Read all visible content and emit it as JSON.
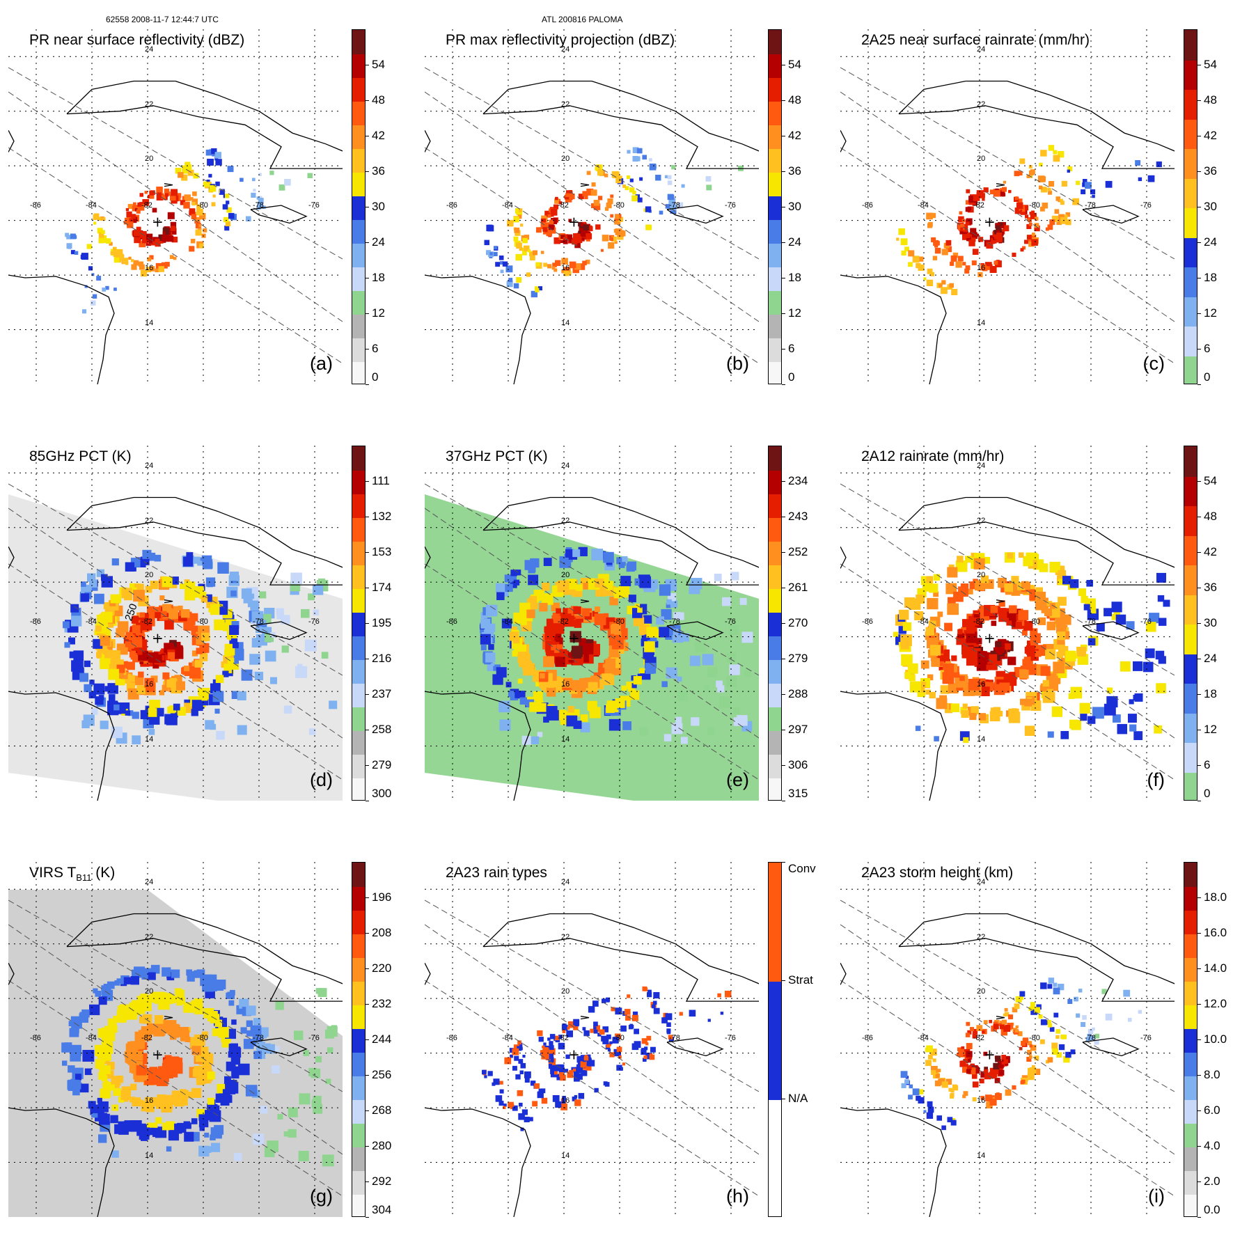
{
  "header": {
    "orbit_time": "62558 2008-11-7 12:44:7 UTC",
    "storm": "ATL 200816 PALOMA"
  },
  "colors": {
    "land_outline": "#000000",
    "grid": "#000000",
    "swath_edge": "#555555"
  },
  "map_ticks": {
    "lat": [
      "24",
      "22",
      "20",
      "16",
      "14"
    ],
    "lon": [
      "-86",
      "-84",
      "-82",
      "-80",
      "-78",
      "-76"
    ]
  },
  "panels": [
    {
      "id": "a",
      "title": "PR near surface reflectivity (dBZ)",
      "label": "(a)",
      "colorbar": {
        "ticks": [
          "54",
          "48",
          "42",
          "36",
          "30",
          "24",
          "18",
          "12",
          "6",
          "0"
        ],
        "colors": [
          "#f7f7f7",
          "#dcdcdc",
          "#b4b4b4",
          "#8fd48f",
          "#c8d8f8",
          "#7fb0f0",
          "#4a7ce8",
          "#1a2fd6",
          "#f6e600",
          "#ffc020",
          "#ff9020",
          "#ff5a10",
          "#e61e00",
          "#b40000",
          "#6e1414"
        ]
      }
    },
    {
      "id": "b",
      "title": "PR max reflectivity projection (dBZ)",
      "label": "(b)",
      "colorbar": {
        "ticks": [
          "54",
          "48",
          "42",
          "36",
          "30",
          "24",
          "18",
          "12",
          "6",
          "0"
        ],
        "colors": [
          "#f7f7f7",
          "#dcdcdc",
          "#b4b4b4",
          "#8fd48f",
          "#c8d8f8",
          "#7fb0f0",
          "#4a7ce8",
          "#1a2fd6",
          "#f6e600",
          "#ffc020",
          "#ff9020",
          "#ff5a10",
          "#e61e00",
          "#b40000",
          "#6e1414"
        ]
      }
    },
    {
      "id": "c",
      "title": "2A25 near surface rainrate (mm/hr)",
      "label": "(c)",
      "colorbar": {
        "ticks": [
          "54",
          "48",
          "42",
          "36",
          "30",
          "24",
          "18",
          "12",
          "6",
          "0"
        ],
        "colors": [
          "#8fd48f",
          "#c8d8f8",
          "#7fb0f0",
          "#4a7ce8",
          "#1a2fd6",
          "#f6e600",
          "#ffc020",
          "#ff9020",
          "#ff5a10",
          "#e61e00",
          "#b40000",
          "#6e1414"
        ]
      }
    },
    {
      "id": "d",
      "title": "85GHz PCT (K)",
      "label": "(d)",
      "contour_label": "250",
      "colorbar": {
        "ticks": [
          "111",
          "132",
          "153",
          "174",
          "195",
          "216",
          "237",
          "258",
          "279",
          "300"
        ],
        "colors": [
          "#f7f7f7",
          "#dcdcdc",
          "#b4b4b4",
          "#8fd48f",
          "#c8d8f8",
          "#7fb0f0",
          "#4a7ce8",
          "#1a2fd6",
          "#f6e600",
          "#ffc020",
          "#ff9020",
          "#ff5a10",
          "#e61e00",
          "#b40000",
          "#6e1414"
        ]
      }
    },
    {
      "id": "e",
      "title": "37GHz PCT (K)",
      "label": "(e)",
      "colorbar": {
        "ticks": [
          "234",
          "243",
          "252",
          "261",
          "270",
          "279",
          "288",
          "297",
          "306",
          "315"
        ],
        "colors": [
          "#f7f7f7",
          "#dcdcdc",
          "#b4b4b4",
          "#8fd48f",
          "#c8d8f8",
          "#7fb0f0",
          "#4a7ce8",
          "#1a2fd6",
          "#f6e600",
          "#ffc020",
          "#ff9020",
          "#ff5a10",
          "#e61e00",
          "#b40000",
          "#6e1414"
        ]
      }
    },
    {
      "id": "f",
      "title": "2A12 rainrate (mm/hr)",
      "label": "(f)",
      "colorbar": {
        "ticks": [
          "54",
          "48",
          "42",
          "36",
          "30",
          "24",
          "18",
          "12",
          "6",
          "0"
        ],
        "colors": [
          "#8fd48f",
          "#c8d8f8",
          "#7fb0f0",
          "#4a7ce8",
          "#1a2fd6",
          "#f6e600",
          "#ffc020",
          "#ff9020",
          "#ff5a10",
          "#e61e00",
          "#b40000",
          "#6e1414"
        ]
      }
    },
    {
      "id": "g",
      "title": "VIRS T",
      "title_sub": "B11",
      "title_suffix": " (K)",
      "label": "(g)",
      "colorbar": {
        "ticks": [
          "196",
          "208",
          "220",
          "232",
          "244",
          "256",
          "268",
          "280",
          "292",
          "304"
        ],
        "colors": [
          "#f7f7f7",
          "#dcdcdc",
          "#b4b4b4",
          "#8fd48f",
          "#c8d8f8",
          "#7fb0f0",
          "#4a7ce8",
          "#1a2fd6",
          "#f6e600",
          "#ffc020",
          "#ff9020",
          "#ff5a10",
          "#e61e00",
          "#b40000",
          "#6e1414"
        ]
      }
    },
    {
      "id": "h",
      "title": "2A23 rain types",
      "label": "(h)",
      "colorbar": {
        "ticks": [
          "Conv",
          "Strat",
          "N/A"
        ],
        "colors": [
          "#ffffff",
          "#1a2fd6",
          "#ff5a10"
        ]
      }
    },
    {
      "id": "i",
      "title": "2A23 storm height (km)",
      "label": "(i)",
      "colorbar": {
        "ticks": [
          "18.0",
          "16.0",
          "14.0",
          "12.0",
          "10.0",
          "8.0",
          "6.0",
          "4.0",
          "2.0",
          "0.0"
        ],
        "colors": [
          "#f7f7f7",
          "#dcdcdc",
          "#b4b4b4",
          "#8fd48f",
          "#c8d8f8",
          "#7fb0f0",
          "#4a7ce8",
          "#1a2fd6",
          "#f6e600",
          "#ffc020",
          "#ff9020",
          "#ff5a10",
          "#e61e00",
          "#b40000",
          "#6e1414"
        ]
      }
    }
  ]
}
